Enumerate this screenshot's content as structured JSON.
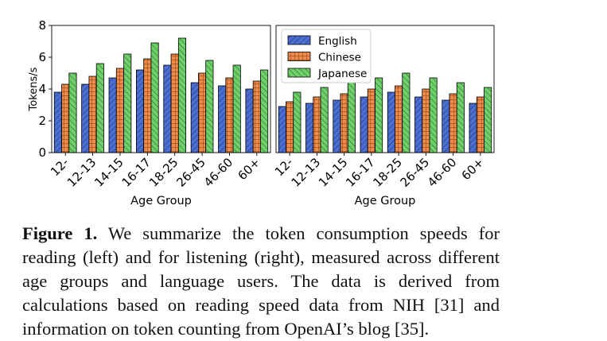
{
  "chart_data": [
    {
      "type": "bar",
      "categories": [
        "12-",
        "12-13",
        "14-15",
        "16-17",
        "18-25",
        "26-45",
        "46-60",
        "60+"
      ],
      "series": [
        {
          "name": "English",
          "values": [
            3.8,
            4.3,
            4.7,
            5.2,
            5.5,
            4.4,
            4.2,
            4.0
          ]
        },
        {
          "name": "Chinese",
          "values": [
            4.3,
            4.8,
            5.3,
            5.9,
            6.2,
            5.0,
            4.7,
            4.5
          ]
        },
        {
          "name": "Japanese",
          "values": [
            5.0,
            5.6,
            6.2,
            6.9,
            7.2,
            5.8,
            5.5,
            5.2
          ]
        }
      ],
      "xlabel": "Age Group",
      "ylabel": "Tokens/s",
      "ylim": [
        0,
        8
      ],
      "yticks": [
        "0",
        "2",
        "4",
        "6",
        "8"
      ],
      "grid": false,
      "legend": "none"
    },
    {
      "type": "bar",
      "categories": [
        "12-",
        "12-13",
        "14-15",
        "16-17",
        "18-25",
        "26-45",
        "46-60",
        "60+"
      ],
      "series": [
        {
          "name": "English",
          "values": [
            2.9,
            3.1,
            3.3,
            3.5,
            3.8,
            3.5,
            3.3,
            3.1
          ]
        },
        {
          "name": "Chinese",
          "values": [
            3.2,
            3.5,
            3.7,
            4.0,
            4.2,
            4.0,
            3.7,
            3.5
          ]
        },
        {
          "name": "Japanese",
          "values": [
            3.8,
            4.1,
            4.4,
            4.7,
            5.0,
            4.7,
            4.4,
            4.1
          ]
        }
      ],
      "xlabel": "Age Group",
      "ylabel": "",
      "ylim": [
        0,
        8
      ],
      "yticks": [],
      "grid": false,
      "legend": "top-left"
    }
  ],
  "colors": {
    "English": "#4a6ed1",
    "Chinese": "#ee8a4a",
    "Japanese": "#6fcf6a"
  },
  "caption": {
    "label": "Figure 1.",
    "text": "We summarize the token consumption speeds for reading (left) and for listening (right), measured across different age groups and language users. The data is derived from calculations based on reading speed data from NIH [31] and information on token counting from OpenAI’s blog [35]."
  }
}
